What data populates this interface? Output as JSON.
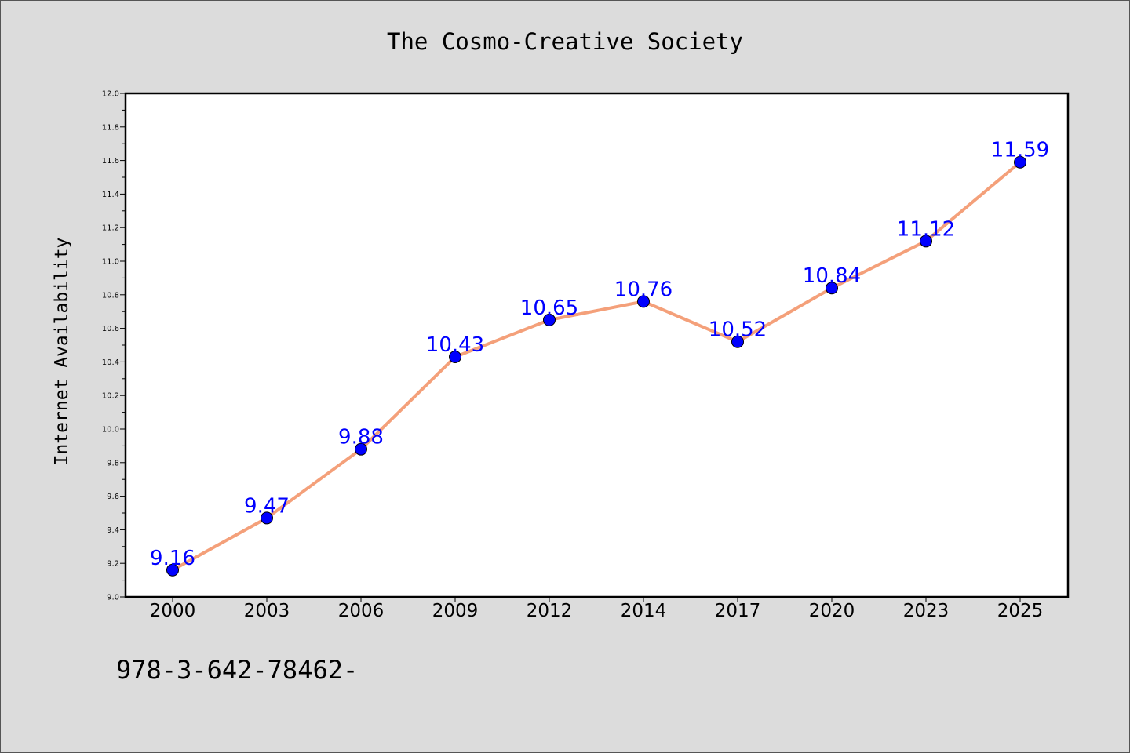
{
  "chart_data": {
    "type": "line",
    "title": "The Cosmo-Creative Society",
    "xlabel": "",
    "ylabel": "Internet Availability",
    "categories": [
      "2000",
      "2003",
      "2006",
      "2009",
      "2012",
      "2014",
      "2017",
      "2020",
      "2023",
      "2025"
    ],
    "series": [
      {
        "values": [
          9.16,
          9.47,
          9.88,
          10.43,
          10.65,
          10.76,
          10.52,
          10.84,
          11.12,
          11.59
        ],
        "labels": [
          "9.16",
          "9.47",
          "9.88",
          "10.43",
          "10.65",
          "10.76",
          "10.52",
          "10.84",
          "11.12",
          "11.59"
        ],
        "line_color": "#f4a07a",
        "marker_color": "#0000ff",
        "label_color": "#0000ff"
      }
    ],
    "ylim": [
      9.0,
      12.0
    ],
    "yticks": [
      "9.0",
      "9.2",
      "9.4",
      "9.6",
      "9.8",
      "10.0",
      "10.2",
      "10.4",
      "10.6",
      "10.8",
      "11.0",
      "11.2",
      "11.4",
      "11.6",
      "11.8",
      "12.0"
    ],
    "grid": false,
    "legend": "none",
    "footer_text": "978-3-642-78462-"
  },
  "colors": {
    "background": "#dcdcdc",
    "plot_background": "#ffffff",
    "axis": "#000000"
  }
}
